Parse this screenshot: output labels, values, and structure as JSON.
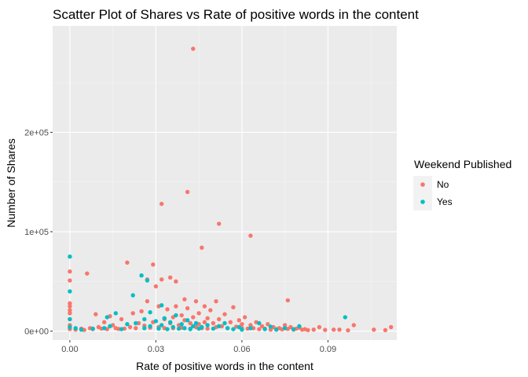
{
  "chart_data": {
    "type": "scatter",
    "title": "Scatter Plot of Shares vs Rate of positive words in the content",
    "xlabel": "Rate of positive words in the content",
    "ylabel": "Number of Shares",
    "xlim": [
      -0.006,
      0.114
    ],
    "ylim": [
      -9000,
      307000
    ],
    "x_ticks": [
      0.0,
      0.03,
      0.06,
      0.09
    ],
    "x_tick_labels": [
      "0.00",
      "0.03",
      "0.06",
      "0.09"
    ],
    "y_ticks": [
      0,
      100000,
      200000
    ],
    "y_tick_labels": [
      "0e+00",
      "1e+05",
      "2e+05"
    ],
    "grid": true,
    "panel_background": "#ebebeb",
    "legend": {
      "title": "Weekend Published",
      "position": "right",
      "entries": [
        {
          "label": "No",
          "color": "#F8766D"
        },
        {
          "label": "Yes",
          "color": "#00BFC4"
        }
      ]
    },
    "series": [
      {
        "name": "No",
        "color": "#F8766D",
        "points": [
          [
            0.0,
            60000
          ],
          [
            0.0,
            51000
          ],
          [
            0.0,
            28000
          ],
          [
            0.0,
            25000
          ],
          [
            0.0,
            21000
          ],
          [
            0.0,
            18000
          ],
          [
            0.0,
            12000
          ],
          [
            0.0,
            6000
          ],
          [
            0.0,
            2000
          ],
          [
            0.002,
            1500
          ],
          [
            0.004,
            2500
          ],
          [
            0.005,
            1200
          ],
          [
            0.006,
            58000
          ],
          [
            0.007,
            3000
          ],
          [
            0.008,
            2000
          ],
          [
            0.009,
            17000
          ],
          [
            0.01,
            4000
          ],
          [
            0.011,
            2500
          ],
          [
            0.012,
            9000
          ],
          [
            0.013,
            2000
          ],
          [
            0.014,
            15000
          ],
          [
            0.015,
            6000
          ],
          [
            0.016,
            3000
          ],
          [
            0.017,
            2200
          ],
          [
            0.018,
            12000
          ],
          [
            0.019,
            2500
          ],
          [
            0.02,
            69000
          ],
          [
            0.021,
            4000
          ],
          [
            0.022,
            18000
          ],
          [
            0.023,
            3000
          ],
          [
            0.024,
            8000
          ],
          [
            0.025,
            20000
          ],
          [
            0.026,
            5500
          ],
          [
            0.027,
            52000
          ],
          [
            0.027,
            30000
          ],
          [
            0.028,
            3500
          ],
          [
            0.029,
            67000
          ],
          [
            0.029,
            9000
          ],
          [
            0.03,
            45000
          ],
          [
            0.031,
            25000
          ],
          [
            0.031,
            4000
          ],
          [
            0.032,
            128000
          ],
          [
            0.032,
            52000
          ],
          [
            0.033,
            12000
          ],
          [
            0.033,
            3000
          ],
          [
            0.034,
            22000
          ],
          [
            0.035,
            54000
          ],
          [
            0.035,
            8000
          ],
          [
            0.036,
            14000
          ],
          [
            0.036,
            3000
          ],
          [
            0.037,
            50000
          ],
          [
            0.037,
            25000
          ],
          [
            0.038,
            6000
          ],
          [
            0.039,
            16000
          ],
          [
            0.039,
            3500
          ],
          [
            0.04,
            32000
          ],
          [
            0.04,
            11000
          ],
          [
            0.041,
            140000
          ],
          [
            0.041,
            23000
          ],
          [
            0.042,
            8000
          ],
          [
            0.042,
            2500
          ],
          [
            0.043,
            284000
          ],
          [
            0.043,
            14000
          ],
          [
            0.044,
            30000
          ],
          [
            0.044,
            4000
          ],
          [
            0.045,
            18000
          ],
          [
            0.045,
            7000
          ],
          [
            0.046,
            84000
          ],
          [
            0.046,
            3000
          ],
          [
            0.047,
            25000
          ],
          [
            0.047,
            9000
          ],
          [
            0.048,
            13000
          ],
          [
            0.048,
            2500
          ],
          [
            0.049,
            21000
          ],
          [
            0.05,
            8000
          ],
          [
            0.051,
            30000
          ],
          [
            0.051,
            4000
          ],
          [
            0.052,
            108000
          ],
          [
            0.052,
            12000
          ],
          [
            0.053,
            5000
          ],
          [
            0.054,
            17000
          ],
          [
            0.055,
            3000
          ],
          [
            0.056,
            9000
          ],
          [
            0.057,
            24000
          ],
          [
            0.058,
            4500
          ],
          [
            0.059,
            11000
          ],
          [
            0.06,
            3000
          ],
          [
            0.06,
            7000
          ],
          [
            0.061,
            14000
          ],
          [
            0.062,
            2500
          ],
          [
            0.063,
            96000
          ],
          [
            0.063,
            6000
          ],
          [
            0.064,
            3000
          ],
          [
            0.065,
            9000
          ],
          [
            0.066,
            2000
          ],
          [
            0.067,
            5000
          ],
          [
            0.068,
            2500
          ],
          [
            0.069,
            7000
          ],
          [
            0.07,
            1500
          ],
          [
            0.071,
            4000
          ],
          [
            0.072,
            2000
          ],
          [
            0.073,
            3000
          ],
          [
            0.074,
            1800
          ],
          [
            0.075,
            6000
          ],
          [
            0.076,
            31000
          ],
          [
            0.076,
            2200
          ],
          [
            0.077,
            4000
          ],
          [
            0.078,
            1500
          ],
          [
            0.079,
            2500
          ],
          [
            0.08,
            3500
          ],
          [
            0.081,
            1500
          ],
          [
            0.082,
            2000
          ],
          [
            0.083,
            1000
          ],
          [
            0.085,
            1500
          ],
          [
            0.087,
            4000
          ],
          [
            0.089,
            1200
          ],
          [
            0.092,
            1500
          ],
          [
            0.094,
            1500
          ],
          [
            0.097,
            800
          ],
          [
            0.099,
            6000
          ],
          [
            0.106,
            1500
          ],
          [
            0.11,
            1000
          ],
          [
            0.112,
            4000
          ]
        ]
      },
      {
        "name": "Yes",
        "color": "#00BFC4",
        "points": [
          [
            0.0,
            75000
          ],
          [
            0.0,
            40000
          ],
          [
            0.0,
            12000
          ],
          [
            0.0,
            4000
          ],
          [
            0.002,
            3000
          ],
          [
            0.004,
            1500
          ],
          [
            0.008,
            2500
          ],
          [
            0.012,
            3000
          ],
          [
            0.013,
            14000
          ],
          [
            0.014,
            5000
          ],
          [
            0.016,
            18000
          ],
          [
            0.018,
            2000
          ],
          [
            0.02,
            7000
          ],
          [
            0.022,
            36000
          ],
          [
            0.023,
            8000
          ],
          [
            0.025,
            56000
          ],
          [
            0.026,
            12000
          ],
          [
            0.026,
            3000
          ],
          [
            0.027,
            51000
          ],
          [
            0.028,
            19000
          ],
          [
            0.028,
            5000
          ],
          [
            0.03,
            10000
          ],
          [
            0.031,
            2500
          ],
          [
            0.032,
            26000
          ],
          [
            0.032,
            6000
          ],
          [
            0.033,
            13000
          ],
          [
            0.034,
            2000
          ],
          [
            0.035,
            9000
          ],
          [
            0.036,
            4000
          ],
          [
            0.037,
            16000
          ],
          [
            0.038,
            2500
          ],
          [
            0.039,
            7000
          ],
          [
            0.04,
            3000
          ],
          [
            0.041,
            11000
          ],
          [
            0.042,
            2000
          ],
          [
            0.043,
            5000
          ],
          [
            0.044,
            8000
          ],
          [
            0.045,
            2500
          ],
          [
            0.046,
            4000
          ],
          [
            0.048,
            6000
          ],
          [
            0.05,
            2500
          ],
          [
            0.052,
            5000
          ],
          [
            0.054,
            8000
          ],
          [
            0.055,
            3000
          ],
          [
            0.057,
            2000
          ],
          [
            0.059,
            4000
          ],
          [
            0.06,
            1500
          ],
          [
            0.063,
            3000
          ],
          [
            0.066,
            8000
          ],
          [
            0.068,
            2000
          ],
          [
            0.07,
            4500
          ],
          [
            0.072,
            1500
          ],
          [
            0.075,
            3000
          ],
          [
            0.078,
            2000
          ],
          [
            0.08,
            5000
          ],
          [
            0.096,
            14000
          ]
        ]
      }
    ]
  }
}
